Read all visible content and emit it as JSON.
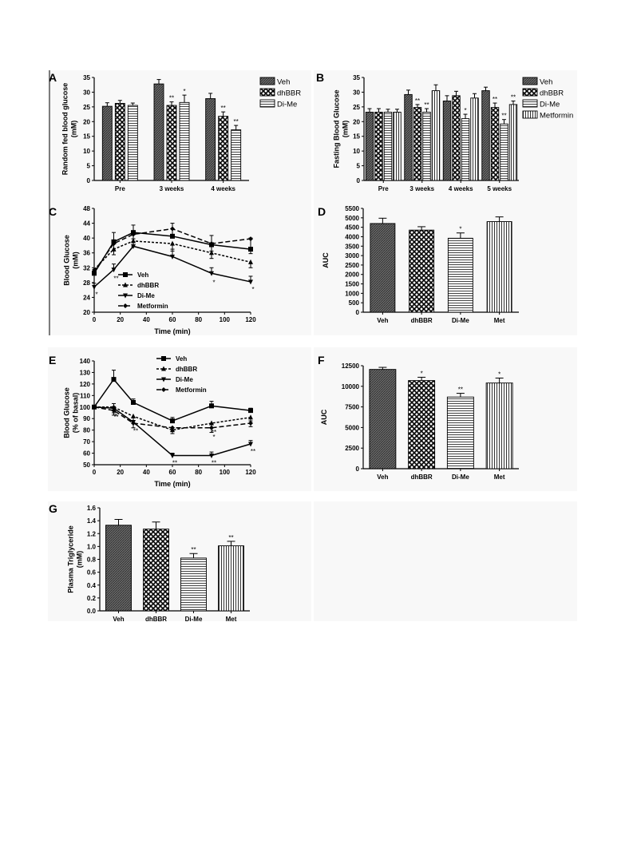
{
  "colors": {
    "veh": "#5a5a5a",
    "dhbbr": "#ffffff",
    "dime": "#d8d8d8",
    "metformin": "#ffffff",
    "ink": "#000000"
  },
  "chart_data": [
    {
      "panel": "A",
      "type": "bar",
      "ylabel": "Random fed blood glucose\n(mM)",
      "categories": [
        "Pre",
        "3 weeks",
        "4 weeks"
      ],
      "ylim": [
        0,
        35
      ],
      "yticks": [
        0,
        5,
        10,
        15,
        20,
        25,
        30,
        35
      ],
      "legend": "right",
      "series": [
        {
          "name": "Veh",
          "values": [
            25.2,
            32.8,
            27.8
          ],
          "err": [
            1.2,
            1.5,
            1.8
          ],
          "marks": [
            "",
            "",
            ""
          ]
        },
        {
          "name": "dhBBR",
          "values": [
            26.2,
            25.5,
            21.8
          ],
          "err": [
            1.0,
            1.2,
            1.5
          ],
          "marks": [
            "",
            "**",
            "**"
          ]
        },
        {
          "name": "Di-Me",
          "values": [
            25.5,
            26.5,
            17.2
          ],
          "err": [
            0.8,
            2.5,
            1.5
          ],
          "marks": [
            "",
            "*",
            "**"
          ]
        }
      ]
    },
    {
      "panel": "B",
      "type": "bar",
      "ylabel": "Fasting Blood Glucose\n(mM)",
      "categories": [
        "Pre",
        "3 weeks",
        "4 weeks",
        "5 weeks"
      ],
      "ylim": [
        0,
        35
      ],
      "yticks": [
        0,
        5,
        10,
        15,
        20,
        25,
        30,
        35
      ],
      "legend": "right",
      "series": [
        {
          "name": "Veh",
          "values": [
            23.2,
            29.2,
            27.0,
            30.5
          ],
          "err": [
            1.2,
            1.5,
            1.8,
            1.2
          ],
          "marks": [
            "",
            "",
            "",
            ""
          ]
        },
        {
          "name": "dhBBR",
          "values": [
            23.2,
            24.8,
            28.8,
            24.8
          ],
          "err": [
            1.2,
            1.0,
            1.5,
            1.5
          ],
          "marks": [
            "",
            "**",
            "",
            "**"
          ]
        },
        {
          "name": "Di-Me",
          "values": [
            23.2,
            23.2,
            21.0,
            19.2
          ],
          "err": [
            1.0,
            1.2,
            1.5,
            1.5
          ],
          "marks": [
            "",
            "**",
            "*",
            "**"
          ]
        },
        {
          "name": "Metformin",
          "values": [
            23.2,
            30.5,
            28.0,
            25.8
          ],
          "err": [
            1.0,
            2.0,
            1.5,
            1.2
          ],
          "marks": [
            "",
            "",
            "",
            "**"
          ]
        }
      ]
    },
    {
      "panel": "C",
      "type": "line",
      "xlabel": "Time (min)",
      "ylabel": "Blood Glucose\n(mM)",
      "x": [
        0,
        15,
        30,
        60,
        90,
        120
      ],
      "xlim": [
        0,
        120
      ],
      "xticks": [
        0,
        20,
        40,
        60,
        80,
        100,
        120
      ],
      "ylim": [
        20,
        48
      ],
      "yticks": [
        20,
        24,
        28,
        32,
        36,
        40,
        44,
        48
      ],
      "legend": "lower-left",
      "series": [
        {
          "name": "Veh",
          "values": [
            30.5,
            39.0,
            41.5,
            40.5,
            38.2,
            37.0
          ],
          "err": [
            1.0,
            2.5,
            2.0,
            3.5,
            2.5,
            3.0
          ],
          "dash": "",
          "marker": "square",
          "marks": [
            "",
            "",
            "",
            "",
            "",
            ""
          ]
        },
        {
          "name": "dhBBR",
          "values": [
            31.5,
            37.0,
            39.2,
            38.5,
            36.0,
            33.5
          ],
          "err": [
            1.0,
            1.5,
            1.5,
            2.0,
            1.5,
            1.5
          ],
          "dash": "3,2",
          "marker": "triangle",
          "marks": [
            "",
            "",
            "",
            "",
            "",
            ""
          ]
        },
        {
          "name": "Di-Me",
          "values": [
            26.8,
            31.5,
            37.8,
            35.0,
            30.5,
            28.2
          ],
          "err": [
            1.0,
            1.5,
            2.0,
            2.0,
            1.5,
            1.5
          ],
          "dash": "",
          "marker": "triangle-down",
          "marks": [
            "*",
            "**",
            "",
            "",
            "*",
            "*"
          ]
        },
        {
          "name": "Metformin",
          "values": [
            31.0,
            38.5,
            41.0,
            42.5,
            38.5,
            39.8
          ],
          "err": [
            1.0,
            2.0,
            2.0,
            2.5,
            2.0,
            4.0
          ],
          "dash": "6,3",
          "marker": "diamond",
          "marks": [
            "",
            "",
            "",
            "",
            "",
            ""
          ]
        }
      ]
    },
    {
      "panel": "D",
      "type": "bar",
      "ylabel": "AUC",
      "categories": [
        "Veh",
        "dhBBR",
        "Di-Me",
        "Met"
      ],
      "ylim": [
        0,
        5500
      ],
      "yticks": [
        0,
        500,
        1000,
        1500,
        2000,
        2500,
        3000,
        3500,
        4000,
        4500,
        5000,
        5500
      ],
      "series": [
        {
          "name": "AUC",
          "values": [
            4700,
            4350,
            3920,
            4800
          ],
          "err": [
            280,
            180,
            280,
            250
          ],
          "marks": [
            "",
            "",
            "*",
            ""
          ],
          "patterns": [
            "veh",
            "dhbbr",
            "dime",
            "met"
          ]
        }
      ]
    },
    {
      "panel": "E",
      "type": "line",
      "xlabel": "Time (min)",
      "ylabel": "Blood Glucose\n(% of basal)",
      "x": [
        0,
        15,
        30,
        60,
        90,
        120
      ],
      "xlim": [
        0,
        120
      ],
      "xticks": [
        0,
        20,
        40,
        60,
        80,
        100,
        120
      ],
      "ylim": [
        50,
        140
      ],
      "yticks": [
        50,
        60,
        70,
        80,
        90,
        100,
        110,
        120,
        130,
        140
      ],
      "legend": "top",
      "series": [
        {
          "name": "Veh",
          "values": [
            100,
            124,
            104,
            88,
            101,
            97
          ],
          "err": [
            0,
            8,
            3,
            3,
            4,
            2
          ],
          "dash": "",
          "marker": "square",
          "marks": [
            "",
            "",
            "",
            "",
            "",
            ""
          ]
        },
        {
          "name": "dhBBR",
          "values": [
            100,
            100,
            92,
            80,
            86,
            91
          ],
          "err": [
            0,
            5,
            4,
            3,
            4,
            3
          ],
          "dash": "3,2",
          "marker": "triangle",
          "marks": [
            "",
            "*",
            "*",
            "",
            "**",
            ""
          ]
        },
        {
          "name": "Di-Me",
          "values": [
            100,
            99,
            87,
            58,
            58,
            68
          ],
          "err": [
            0,
            4,
            4,
            2,
            3,
            3
          ],
          "dash": "",
          "marker": "triangle-down",
          "marks": [
            "",
            "**",
            "**",
            "**",
            "**",
            "**"
          ]
        },
        {
          "name": "Metformin",
          "values": [
            100,
            97,
            86,
            82,
            82,
            86
          ],
          "err": [
            0,
            4,
            4,
            3,
            4,
            3
          ],
          "dash": "6,3",
          "marker": "diamond",
          "marks": [
            "",
            "",
            "",
            "",
            "*",
            ""
          ]
        }
      ]
    },
    {
      "panel": "F",
      "type": "bar",
      "ylabel": "AUC",
      "categories": [
        "Veh",
        "dhBBR",
        "Di-Me",
        "Met"
      ],
      "ylim": [
        0,
        12500
      ],
      "yticks": [
        0,
        2500,
        5000,
        7500,
        10000,
        12500
      ],
      "series": [
        {
          "name": "AUC",
          "values": [
            12050,
            10700,
            8700,
            10400
          ],
          "err": [
            250,
            400,
            450,
            600
          ],
          "marks": [
            "",
            "*",
            "**",
            "*"
          ],
          "patterns": [
            "veh",
            "dhbbr",
            "dime",
            "met"
          ]
        }
      ]
    },
    {
      "panel": "G",
      "type": "bar",
      "ylabel": "Plasma Triglyceride\n(mM)",
      "categories": [
        "Veh",
        "dhBBR",
        "Di-Me",
        "Met"
      ],
      "ylim": [
        0,
        1.6
      ],
      "yticks": [
        0.0,
        0.2,
        0.4,
        0.6,
        0.8,
        1.0,
        1.2,
        1.4,
        1.6
      ],
      "series": [
        {
          "name": "Plasma Triglyceride",
          "values": [
            1.33,
            1.27,
            0.82,
            1.01
          ],
          "err": [
            0.09,
            0.11,
            0.07,
            0.07
          ],
          "marks": [
            "",
            "",
            "**",
            "**"
          ],
          "patterns": [
            "veh",
            "dhbbr",
            "dime",
            "met"
          ]
        }
      ]
    }
  ]
}
